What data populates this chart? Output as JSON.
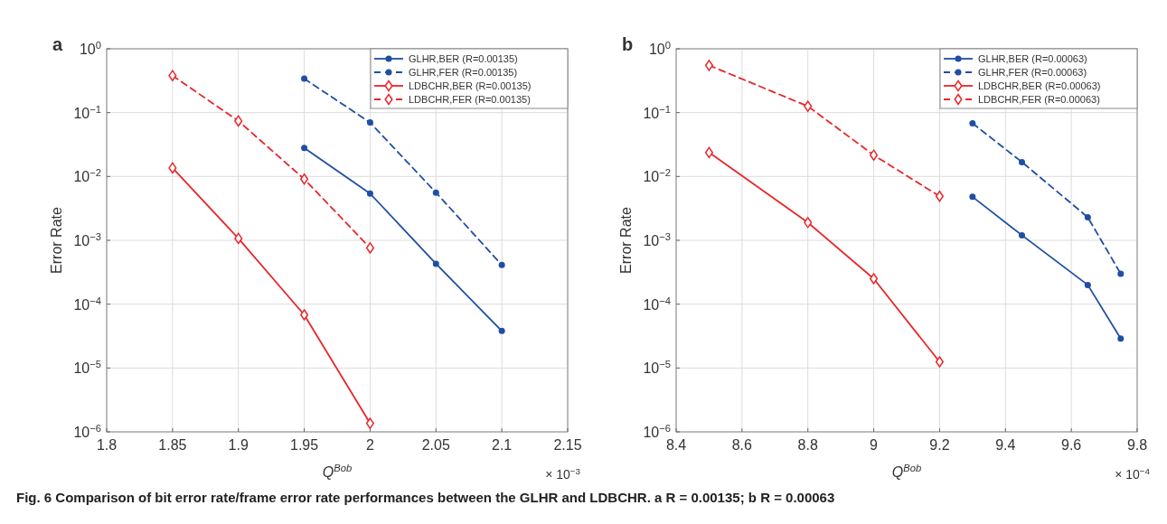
{
  "chart_data": [
    {
      "type": "line",
      "title": "a",
      "xlabel": "Q$^{Bob}$",
      "ylabel": "Error Rate",
      "log": "y",
      "grid": true,
      "legend": "top right",
      "xlim": [
        1.8,
        2.15
      ],
      "xticks": [
        1.8,
        1.85,
        1.9,
        1.95,
        2,
        2.05,
        2.1,
        2.15
      ],
      "ylim": [
        1e-06,
        1
      ],
      "yticks": [
        {
          "value": 1,
          "label": "10$^{0}$"
        },
        {
          "value": 0.1,
          "label": "10$^{−1}$"
        },
        {
          "value": 0.01,
          "label": "10$^{−2}$"
        },
        {
          "value": 0.001,
          "label": "10$^{−3}$"
        },
        {
          "value": 0.0001,
          "label": "10$^{−4}$"
        },
        {
          "value": 1e-05,
          "label": "10$^{−5}$"
        },
        {
          "value": 1e-06,
          "label": "10$^{−6}$"
        }
      ],
      "annotations": [
        "× 10$^{−3}$"
      ],
      "series": [
        {
          "name": "GLHR,BER (R=0.00135)",
          "color": "#1f4ea3",
          "marker": "circle",
          "line_style": "solid",
          "x": [
            1.95,
            2,
            2.05,
            2.1
          ],
          "values": [
            0.028,
            0.0054,
            0.00043,
            3.8e-05
          ]
        },
        {
          "name": "GLHR,FER (R=0.00135)",
          "color": "#1f4ea3",
          "marker": "circle",
          "line_style": "dashed",
          "x": [
            1.95,
            2,
            2.05,
            2.1
          ],
          "values": [
            0.34,
            0.07,
            0.0056,
            0.00041
          ]
        },
        {
          "name": "LDBCHR,BER (R=0.00135)",
          "color": "#e8262a",
          "marker": "diamond",
          "line_style": "solid",
          "x": [
            1.85,
            1.9,
            1.95,
            2
          ],
          "values": [
            0.0136,
            0.00107,
            6.8e-05,
            1.36e-06
          ]
        },
        {
          "name": "LDBCHR,FER (R=0.00135)",
          "color": "#e8262a",
          "marker": "diamond",
          "line_style": "dashed",
          "x": [
            1.85,
            1.9,
            1.95,
            2
          ],
          "values": [
            0.38,
            0.074,
            0.0091,
            0.00076
          ]
        }
      ]
    },
    {
      "type": "line",
      "title": "b",
      "xlabel": "Q$^{Bob}$",
      "ylabel": "Error Rate",
      "log": "y",
      "grid": true,
      "legend": "top right",
      "xlim": [
        8.4,
        9.8
      ],
      "xticks": [
        8.4,
        8.6,
        8.8,
        9,
        9.2,
        9.4,
        9.6,
        9.8
      ],
      "ylim": [
        1e-06,
        1
      ],
      "yticks": [
        {
          "value": 1,
          "label": "10$^{0}$"
        },
        {
          "value": 0.1,
          "label": "10$^{−1}$"
        },
        {
          "value": 0.01,
          "label": "10$^{−2}$"
        },
        {
          "value": 0.001,
          "label": "10$^{−3}$"
        },
        {
          "value": 0.0001,
          "label": "10$^{−4}$"
        },
        {
          "value": 1e-05,
          "label": "10$^{−5}$"
        },
        {
          "value": 1e-06,
          "label": "10$^{−6}$"
        }
      ],
      "annotations": [
        "× 10$^{−4}$",
        "Fig. 6 Comparison of bit error rate/frame error rate performances between the GLHR and LDBCHR. a R = 0.00135; b R = 0.00063"
      ],
      "series": [
        {
          "name": "GLHR,BER (R=0.00063)",
          "color": "#1f4ea3",
          "marker": "circle",
          "line_style": "solid",
          "x": [
            9.3,
            9.45,
            9.65,
            9.75
          ],
          "values": [
            0.0048,
            0.0012,
            0.0002,
            2.9e-05
          ]
        },
        {
          "name": "GLHR,FER (R=0.00063)",
          "color": "#1f4ea3",
          "marker": "circle",
          "line_style": "dashed",
          "x": [
            9.3,
            9.45,
            9.65,
            9.75
          ],
          "values": [
            0.068,
            0.0168,
            0.0023,
            0.0003
          ]
        },
        {
          "name": "LDBCHR,BER (R=0.00063)",
          "color": "#e8262a",
          "marker": "diamond",
          "line_style": "solid",
          "x": [
            8.5,
            8.8,
            9,
            9.2
          ],
          "values": [
            0.0237,
            0.0019,
            0.00025,
            1.25e-05
          ]
        },
        {
          "name": "LDBCHR,FER (R=0.00063)",
          "color": "#e8262a",
          "marker": "diamond",
          "line_style": "dashed",
          "x": [
            8.5,
            8.8,
            9,
            9.2
          ],
          "values": [
            0.55,
            0.126,
            0.0216,
            0.0049
          ]
        }
      ]
    }
  ]
}
